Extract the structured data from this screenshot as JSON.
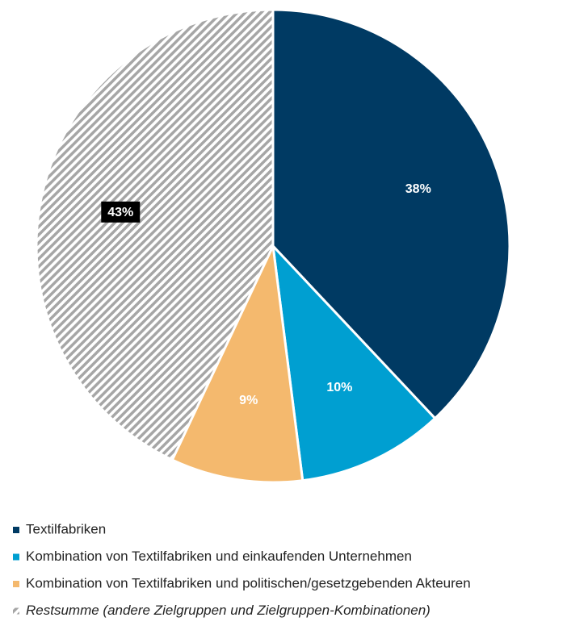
{
  "chart_data": {
    "type": "pie",
    "categories": [
      "Textilfabriken",
      "Kombination von Textilfabriken und einkaufenden Unternehmen",
      "Kombination von Textilfabriken und politischen/gesetzgebenden Akteuren",
      "Restsumme (andere Zielgruppen und Zielgruppen-Kombinationen)"
    ],
    "values": [
      38,
      10,
      9,
      43
    ],
    "value_labels": [
      "38%",
      "10%",
      "9%",
      "43%"
    ],
    "colors": [
      "#003a63",
      "#009fd1",
      "#f4b96e",
      "hatch"
    ]
  }
}
